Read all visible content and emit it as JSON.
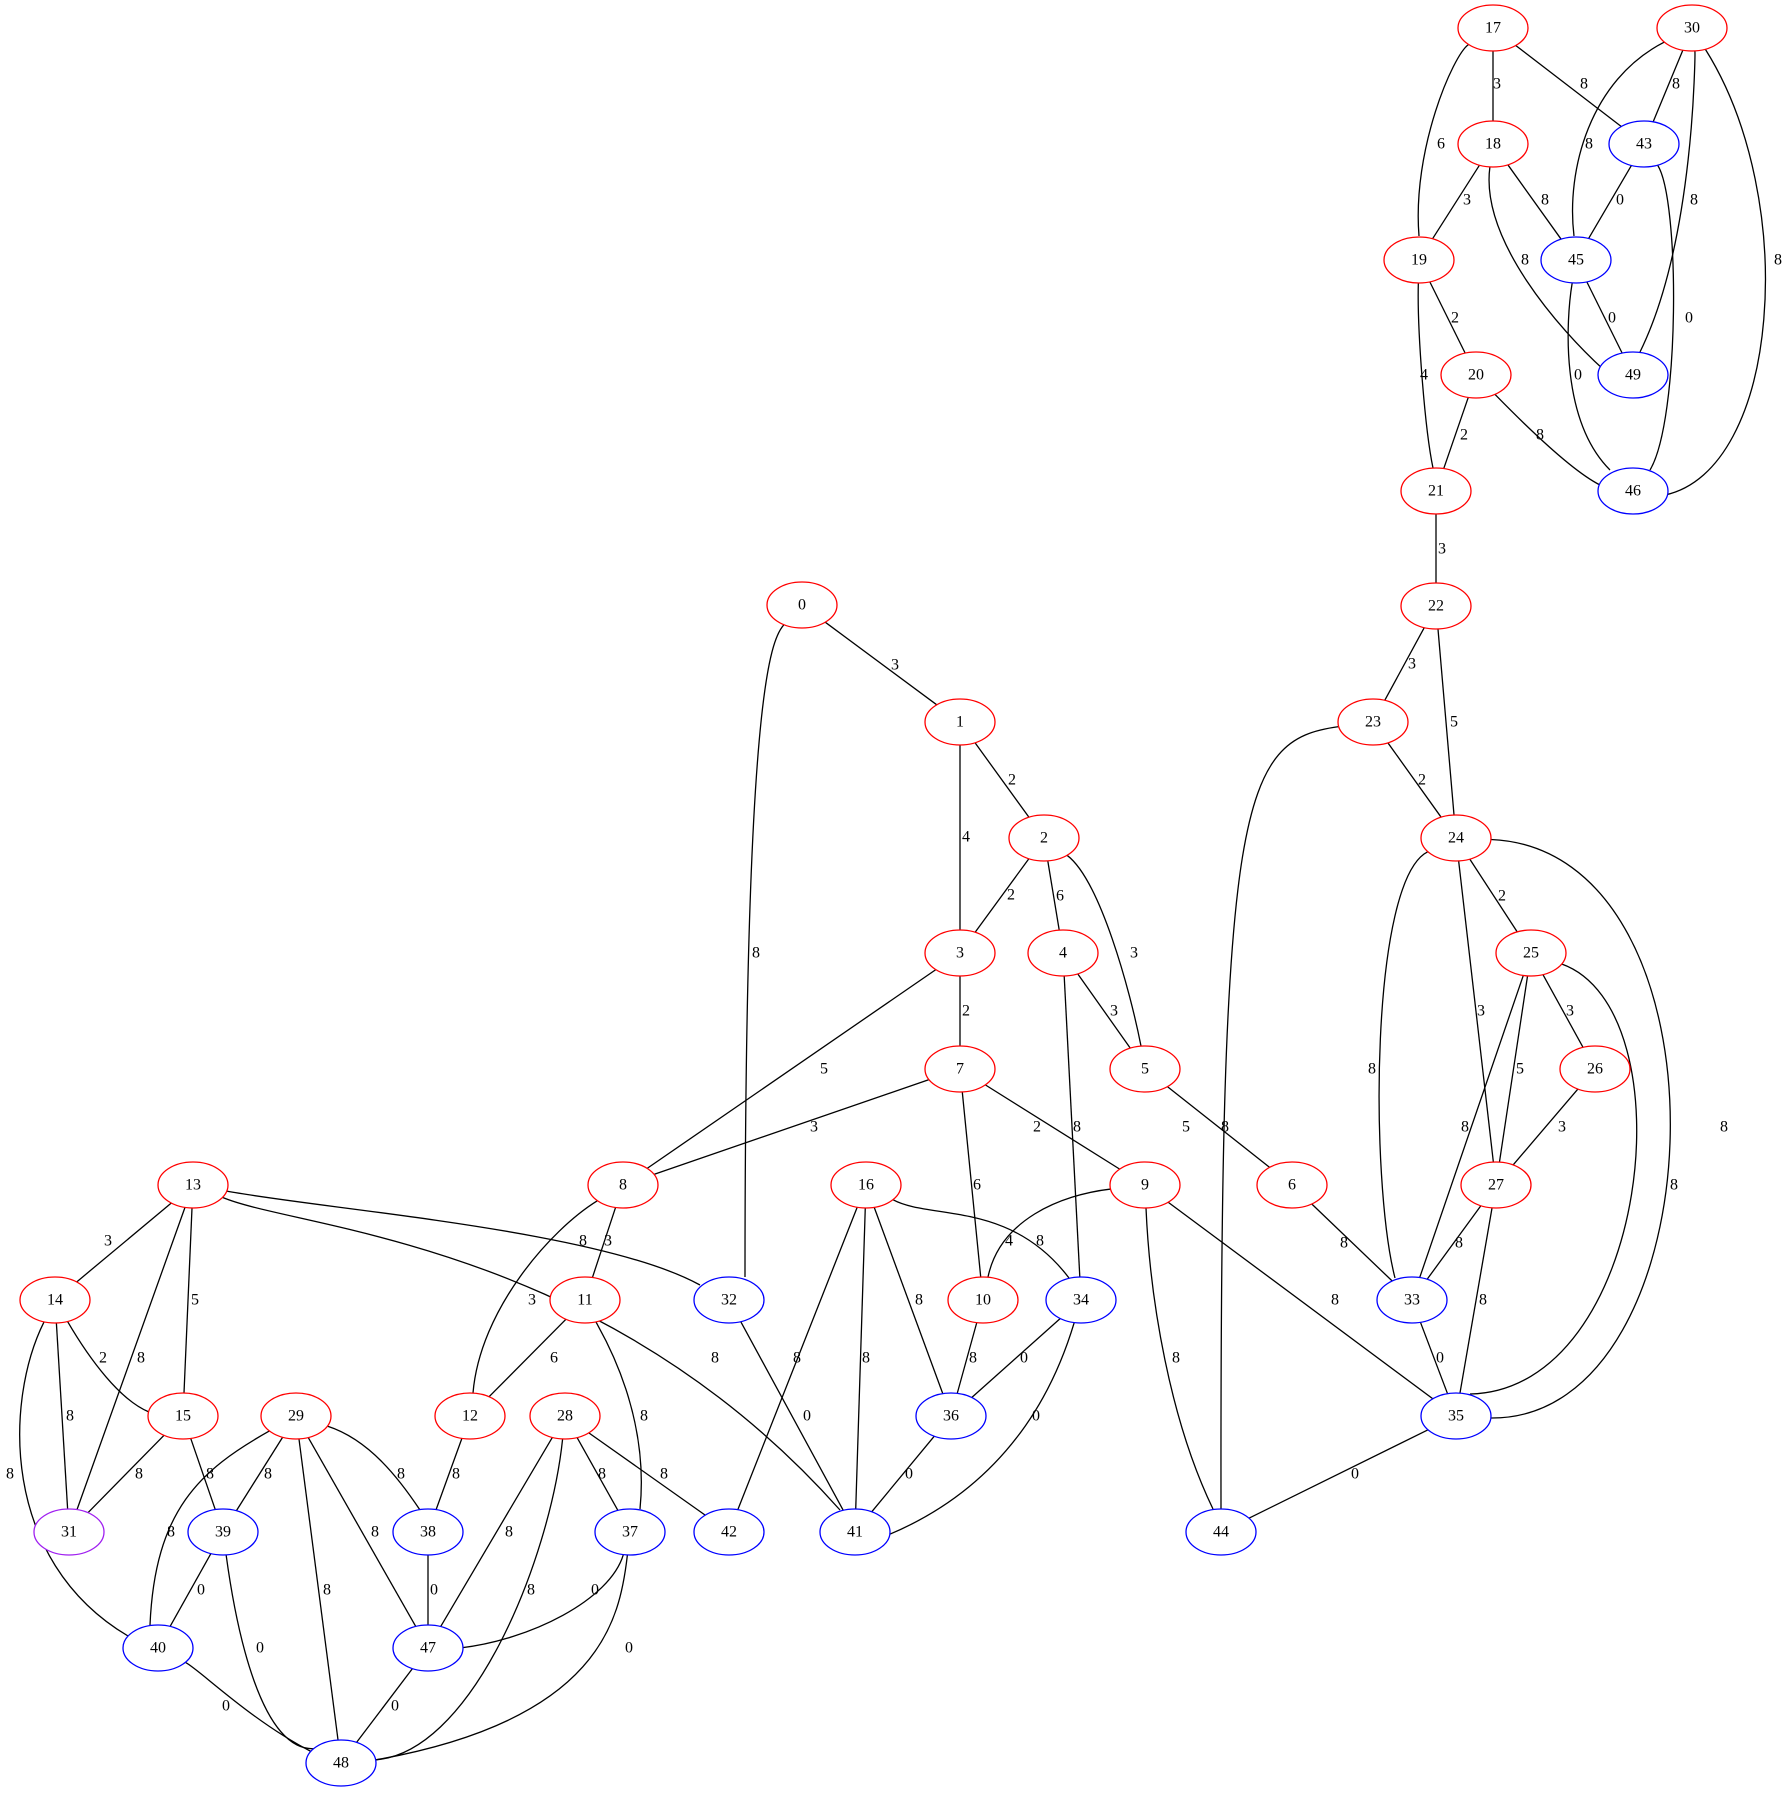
{
  "colors": {
    "red": "#ff0000",
    "blue": "#0000ff",
    "purple": "#a020f0"
  },
  "nodes": [
    {
      "id": "0",
      "color": "red"
    },
    {
      "id": "1",
      "color": "red"
    },
    {
      "id": "2",
      "color": "red"
    },
    {
      "id": "3",
      "color": "red"
    },
    {
      "id": "4",
      "color": "red"
    },
    {
      "id": "5",
      "color": "red"
    },
    {
      "id": "6",
      "color": "red"
    },
    {
      "id": "7",
      "color": "red"
    },
    {
      "id": "8",
      "color": "red"
    },
    {
      "id": "9",
      "color": "red"
    },
    {
      "id": "10",
      "color": "red"
    },
    {
      "id": "11",
      "color": "red"
    },
    {
      "id": "12",
      "color": "red"
    },
    {
      "id": "13",
      "color": "red"
    },
    {
      "id": "14",
      "color": "red"
    },
    {
      "id": "15",
      "color": "red"
    },
    {
      "id": "16",
      "color": "red"
    },
    {
      "id": "17",
      "color": "red"
    },
    {
      "id": "18",
      "color": "red"
    },
    {
      "id": "19",
      "color": "red"
    },
    {
      "id": "20",
      "color": "red"
    },
    {
      "id": "21",
      "color": "red"
    },
    {
      "id": "22",
      "color": "red"
    },
    {
      "id": "23",
      "color": "red"
    },
    {
      "id": "24",
      "color": "red"
    },
    {
      "id": "25",
      "color": "red"
    },
    {
      "id": "26",
      "color": "red"
    },
    {
      "id": "27",
      "color": "red"
    },
    {
      "id": "28",
      "color": "red"
    },
    {
      "id": "29",
      "color": "red"
    },
    {
      "id": "30",
      "color": "red"
    },
    {
      "id": "31",
      "color": "purple"
    },
    {
      "id": "32",
      "color": "blue"
    },
    {
      "id": "33",
      "color": "blue"
    },
    {
      "id": "34",
      "color": "blue"
    },
    {
      "id": "35",
      "color": "blue"
    },
    {
      "id": "36",
      "color": "blue"
    },
    {
      "id": "37",
      "color": "blue"
    },
    {
      "id": "38",
      "color": "blue"
    },
    {
      "id": "39",
      "color": "blue"
    },
    {
      "id": "40",
      "color": "blue"
    },
    {
      "id": "41",
      "color": "blue"
    },
    {
      "id": "42",
      "color": "blue"
    },
    {
      "id": "43",
      "color": "blue"
    },
    {
      "id": "44",
      "color": "blue"
    },
    {
      "id": "45",
      "color": "blue"
    },
    {
      "id": "46",
      "color": "blue"
    },
    {
      "id": "47",
      "color": "blue"
    },
    {
      "id": "48",
      "color": "blue"
    },
    {
      "id": "49",
      "color": "blue"
    }
  ],
  "edges": [
    {
      "from": "17",
      "to": "18",
      "label": "3"
    },
    {
      "from": "17",
      "to": "43",
      "label": "8"
    },
    {
      "from": "17",
      "to": "19",
      "label": "6"
    },
    {
      "from": "30",
      "to": "43",
      "label": "8"
    },
    {
      "from": "30",
      "to": "45",
      "label": "8"
    },
    {
      "from": "30",
      "to": "49",
      "label": "8"
    },
    {
      "from": "30",
      "to": "46",
      "label": "8"
    },
    {
      "from": "18",
      "to": "19",
      "label": "3"
    },
    {
      "from": "18",
      "to": "45",
      "label": "8"
    },
    {
      "from": "18",
      "to": "49",
      "label": "8"
    },
    {
      "from": "43",
      "to": "45",
      "label": "0"
    },
    {
      "from": "43",
      "to": "46",
      "label": "0"
    },
    {
      "from": "45",
      "to": "49",
      "label": "0"
    },
    {
      "from": "45",
      "to": "46",
      "label": "0"
    },
    {
      "from": "19",
      "to": "20",
      "label": "2"
    },
    {
      "from": "19",
      "to": "21",
      "label": "4"
    },
    {
      "from": "20",
      "to": "21",
      "label": "2"
    },
    {
      "from": "20",
      "to": "46",
      "label": "8"
    },
    {
      "from": "21",
      "to": "22",
      "label": "3"
    },
    {
      "from": "22",
      "to": "23",
      "label": "3"
    },
    {
      "from": "22",
      "to": "24",
      "label": "5"
    },
    {
      "from": "23",
      "to": "24",
      "label": "2"
    },
    {
      "from": "23",
      "to": "44",
      "label": "8"
    },
    {
      "from": "24",
      "to": "25",
      "label": "2"
    },
    {
      "from": "24",
      "to": "33",
      "label": "8"
    },
    {
      "from": "24",
      "to": "27",
      "label": "3"
    },
    {
      "from": "24",
      "to": "35",
      "label": "8"
    },
    {
      "from": "25",
      "to": "26",
      "label": "3"
    },
    {
      "from": "25",
      "to": "27",
      "label": "5"
    },
    {
      "from": "25",
      "to": "33",
      "label": "8"
    },
    {
      "from": "25",
      "to": "35",
      "label": "8"
    },
    {
      "from": "26",
      "to": "27",
      "label": "3"
    },
    {
      "from": "27",
      "to": "33",
      "label": "8"
    },
    {
      "from": "27",
      "to": "35",
      "label": "8"
    },
    {
      "from": "6",
      "to": "33",
      "label": "8"
    },
    {
      "from": "33",
      "to": "35",
      "label": "0"
    },
    {
      "from": "35",
      "to": "44",
      "label": "0"
    },
    {
      "from": "0",
      "to": "1",
      "label": "3"
    },
    {
      "from": "0",
      "to": "32",
      "label": "8"
    },
    {
      "from": "1",
      "to": "2",
      "label": "2"
    },
    {
      "from": "1",
      "to": "3",
      "label": "4"
    },
    {
      "from": "2",
      "to": "3",
      "label": "2"
    },
    {
      "from": "2",
      "to": "4",
      "label": "6"
    },
    {
      "from": "2",
      "to": "5",
      "label": "3"
    },
    {
      "from": "4",
      "to": "5",
      "label": "3"
    },
    {
      "from": "4",
      "to": "34",
      "label": "8"
    },
    {
      "from": "5",
      "to": "6",
      "label": "5"
    },
    {
      "from": "3",
      "to": "7",
      "label": "2"
    },
    {
      "from": "3",
      "to": "8",
      "label": "5"
    },
    {
      "from": "7",
      "to": "8",
      "label": "3"
    },
    {
      "from": "7",
      "to": "9",
      "label": "2"
    },
    {
      "from": "7",
      "to": "10",
      "label": "6"
    },
    {
      "from": "9",
      "to": "10",
      "label": "4"
    },
    {
      "from": "9",
      "to": "44",
      "label": "8"
    },
    {
      "from": "9",
      "to": "35",
      "label": "8"
    },
    {
      "from": "8",
      "to": "11",
      "label": "3"
    },
    {
      "from": "8",
      "to": "12",
      "label": "3"
    },
    {
      "from": "11",
      "to": "12",
      "label": "6"
    },
    {
      "from": "11",
      "to": "37",
      "label": "8"
    },
    {
      "from": "12",
      "to": "38",
      "label": "8"
    },
    {
      "from": "16",
      "to": "34",
      "label": "8"
    },
    {
      "from": "16",
      "to": "36",
      "label": "8"
    },
    {
      "from": "16",
      "to": "41",
      "label": "8"
    },
    {
      "from": "16",
      "to": "42",
      "label": "8"
    },
    {
      "from": "10",
      "to": "36",
      "label": "8"
    },
    {
      "from": "34",
      "to": "36",
      "label": "0"
    },
    {
      "from": "34",
      "to": "41",
      "label": "0"
    },
    {
      "from": "36",
      "to": "41",
      "label": "0"
    },
    {
      "from": "32",
      "to": "41",
      "label": "0"
    },
    {
      "from": "13",
      "to": "14",
      "label": "3"
    },
    {
      "from": "13",
      "to": "15",
      "label": "5"
    },
    {
      "from": "13",
      "to": "31",
      "label": "8"
    },
    {
      "from": "13",
      "to": "32",
      "label": "8"
    },
    {
      "from": "13",
      "to": "41",
      "label": "8"
    },
    {
      "from": "14",
      "to": "15",
      "label": "2"
    },
    {
      "from": "14",
      "to": "31",
      "label": "8"
    },
    {
      "from": "14",
      "to": "40",
      "label": "8"
    },
    {
      "from": "15",
      "to": "31",
      "label": "8"
    },
    {
      "from": "15",
      "to": "39",
      "label": "8"
    },
    {
      "from": "29",
      "to": "39",
      "label": "8"
    },
    {
      "from": "29",
      "to": "40",
      "label": "8"
    },
    {
      "from": "29",
      "to": "48",
      "label": "8"
    },
    {
      "from": "29",
      "to": "47",
      "label": "8"
    },
    {
      "from": "29",
      "to": "38",
      "label": "8"
    },
    {
      "from": "28",
      "to": "37",
      "label": "8"
    },
    {
      "from": "28",
      "to": "42",
      "label": "8"
    },
    {
      "from": "28",
      "to": "47",
      "label": "8"
    },
    {
      "from": "28",
      "to": "48",
      "label": "8"
    },
    {
      "from": "39",
      "to": "40",
      "label": "0"
    },
    {
      "from": "39",
      "to": "48",
      "label": "0"
    },
    {
      "from": "38",
      "to": "47",
      "label": "0"
    },
    {
      "from": "37",
      "to": "47",
      "label": "0"
    },
    {
      "from": "37",
      "to": "48",
      "label": "0"
    },
    {
      "from": "47",
      "to": "48",
      "label": "0"
    },
    {
      "from": "40",
      "to": "48",
      "label": "0"
    }
  ]
}
